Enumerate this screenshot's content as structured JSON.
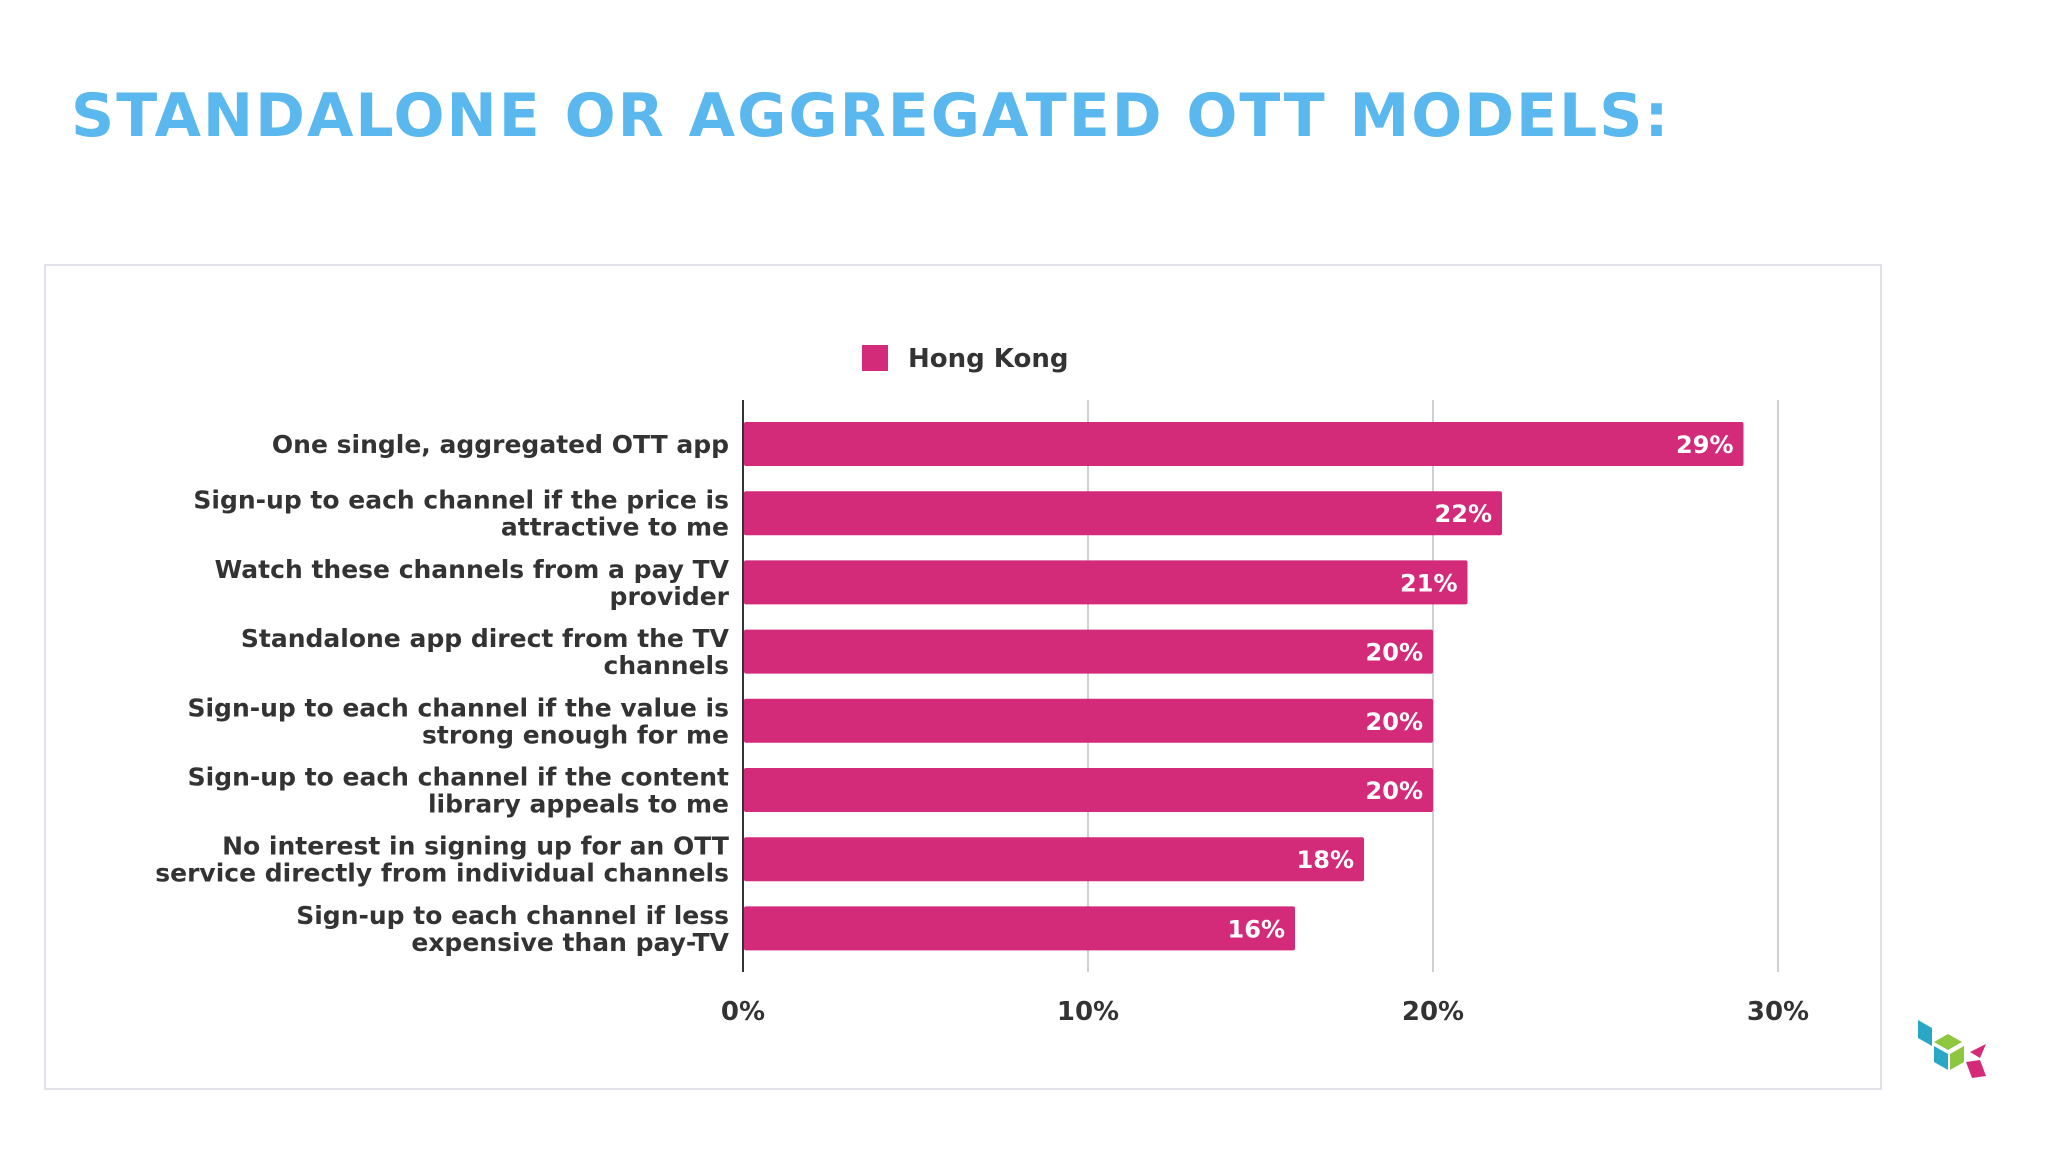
{
  "slide": {
    "title": "STANDALONE OR AGGREGATED OTT MODELS:",
    "title_color": "#5ab8ee"
  },
  "chart_data": {
    "type": "bar",
    "orientation": "horizontal",
    "categories": [
      [
        "One single, aggregated OTT app"
      ],
      [
        "Sign-up to each channel if the price is",
        "attractive to me"
      ],
      [
        "Watch these channels from a pay TV",
        "provider"
      ],
      [
        "Standalone app direct from the TV",
        "channels"
      ],
      [
        "Sign-up to each channel if the value is",
        "strong enough for me"
      ],
      [
        "Sign-up to each channel if the content",
        "library appeals to me"
      ],
      [
        "No interest in signing up for an OTT",
        "service directly from individual channels"
      ],
      [
        "Sign-up to each channel if less",
        "expensive than pay-TV"
      ]
    ],
    "series": [
      {
        "name": "Hong Kong",
        "color": "#d42a7a",
        "values": [
          29,
          22,
          21,
          20,
          20,
          20,
          18,
          16
        ],
        "data_labels": [
          "29%",
          "22%",
          "21%",
          "20%",
          "20%",
          "20%",
          "18%",
          "16%"
        ]
      }
    ],
    "xlim": [
      0,
      30
    ],
    "x_ticks": [
      "0%",
      "10%",
      "20%",
      "30%"
    ],
    "grid": true,
    "legend": "top-center",
    "title": "",
    "xlabel": "",
    "ylabel": ""
  },
  "logo": {
    "icon": "colored-chevrons-logo",
    "colors": [
      "#2aa7c4",
      "#8dc63f",
      "#d42a7a"
    ]
  }
}
